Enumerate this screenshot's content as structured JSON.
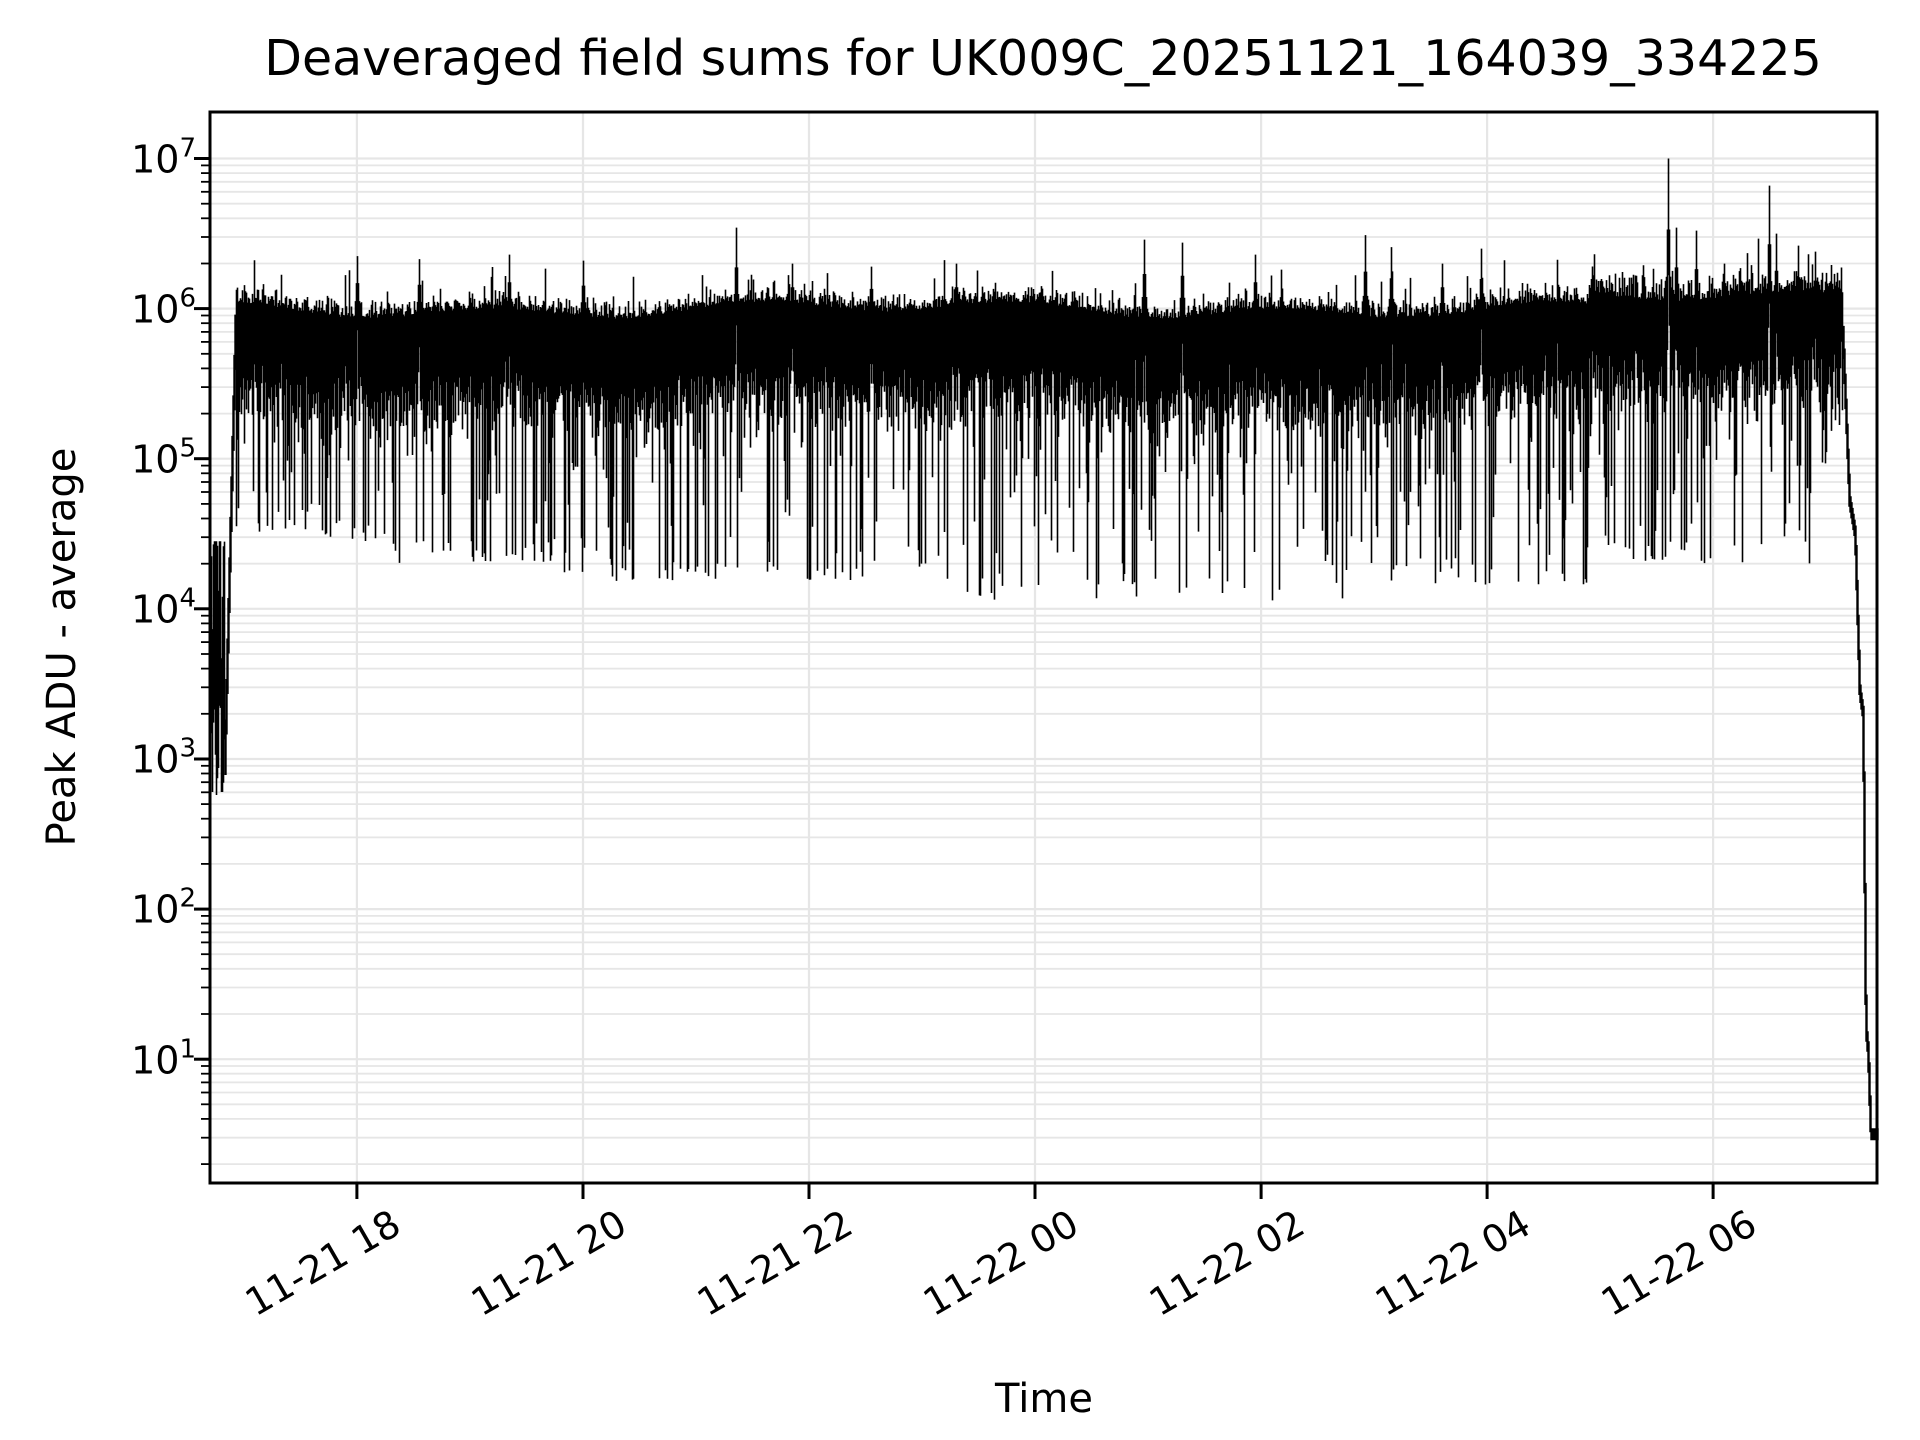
{
  "chart_data": {
    "type": "line",
    "title": "Deaveraged field sums for UK009C_20251121_164039_334225",
    "xlabel": "Time",
    "ylabel": "Peak ADU - average",
    "x_scale": "time",
    "y_scale": "log",
    "line_color": "#000000",
    "grid_color": "#e6e6e6",
    "x_tick_labels": [
      "11-21 18",
      "11-21 20",
      "11-21 22",
      "11-22 00",
      "11-22 02",
      "11-22 04",
      "11-22 06"
    ],
    "x_tick_hours": [
      18,
      20,
      22,
      24,
      26,
      28,
      30
    ],
    "x_range_hours": [
      16.7,
      31.45
    ],
    "y_tick_base": "10",
    "y_tick_exponents": [
      "7",
      "6",
      "5",
      "4",
      "3",
      "2",
      "1"
    ],
    "y_log_range": [
      0.175,
      7.31
    ],
    "signal": {
      "baseline_log": 5.95,
      "late_baseline_log": 6.02,
      "late_start_hour": 28.9,
      "top_jitter": 0.17,
      "deep_limits": [
        [
          16.9,
          18.3,
          4.45
        ],
        [
          18.3,
          19.8,
          4.3
        ],
        [
          19.8,
          23.3,
          4.18
        ],
        [
          23.3,
          26.8,
          4.05
        ],
        [
          26.8,
          28.9,
          4.15
        ],
        [
          28.9,
          31.16,
          4.3
        ]
      ],
      "up_spikes": [
        [
          18.0,
          6.35
        ],
        [
          18.55,
          6.33
        ],
        [
          19.35,
          6.36
        ],
        [
          20.0,
          6.32
        ],
        [
          21.35,
          6.54
        ],
        [
          21.85,
          6.3
        ],
        [
          22.55,
          6.28
        ],
        [
          23.3,
          6.3
        ],
        [
          24.96,
          6.46
        ],
        [
          25.3,
          6.44
        ],
        [
          25.95,
          6.36
        ],
        [
          26.92,
          6.49
        ],
        [
          27.15,
          6.41
        ],
        [
          27.6,
          6.3
        ],
        [
          27.95,
          6.4
        ],
        [
          29.6,
          7.0
        ],
        [
          29.67,
          6.54
        ],
        [
          29.85,
          6.52
        ],
        [
          30.1,
          6.3
        ],
        [
          30.3,
          6.37
        ],
        [
          30.49,
          6.82
        ],
        [
          30.56,
          6.5
        ],
        [
          30.75,
          6.42
        ],
        [
          30.9,
          6.38
        ]
      ],
      "start": {
        "cluster_until_hour": 16.83,
        "cluster_log_range": [
          2.78,
          4.45
        ],
        "min_log": 2.76,
        "rise_until_hour": 16.93,
        "join_log": 5.9
      },
      "end": {
        "steps": [
          [
            31.15,
            5.85
          ],
          [
            31.21,
            4.72
          ],
          [
            31.26,
            4.5
          ],
          [
            31.3,
            3.45
          ],
          [
            31.33,
            3.3
          ],
          [
            31.355,
            1.2
          ],
          [
            31.375,
            1.05
          ],
          [
            31.395,
            0.55
          ],
          [
            31.45,
            0.5
          ]
        ],
        "final_log_range": [
          0.46,
          0.54
        ]
      }
    }
  }
}
